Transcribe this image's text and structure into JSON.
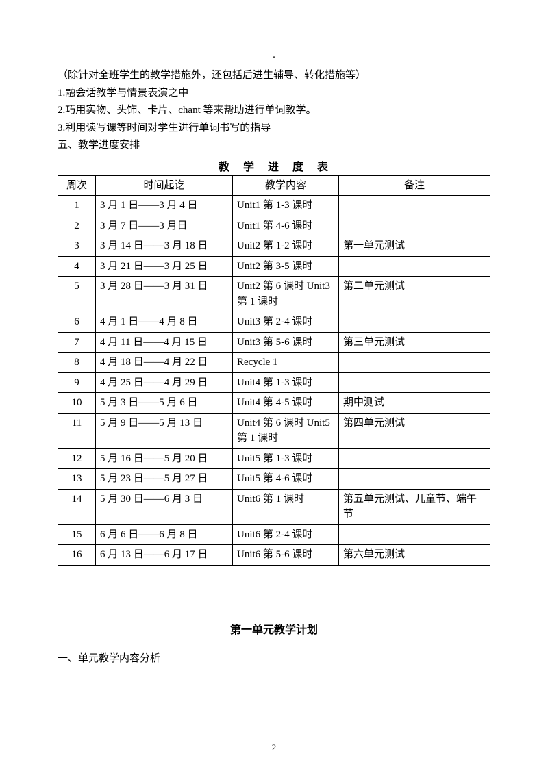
{
  "header_dot": ".",
  "intro": {
    "line1": "（除针对全班学生的教学措施外，还包括后进生辅导、转化措施等）",
    "line2": "1.融会话教学与情景表演之中",
    "line3": "2.巧用实物、头饰、卡片、chant 等来帮助进行单词教学。",
    "line4": "3.利用读写课等时间对学生进行单词书写的指导",
    "line5": "五、教学进度安排"
  },
  "table_title": "教　学　进　度　表",
  "table": {
    "headers": {
      "week": "周次",
      "time": "时间起讫",
      "content": "教学内容",
      "note": "备注"
    },
    "rows": [
      {
        "week": "1",
        "time": "3 月 1 日——3 月 4 日",
        "content": "Unit1 第 1-3 课时",
        "note": ""
      },
      {
        "week": "2",
        "time": "3 月 7 日——3 月日",
        "content": "Unit1 第 4-6 课时",
        "note": ""
      },
      {
        "week": "3",
        "time": "3 月 14 日——3 月 18 日",
        "content": "Unit2 第 1-2 课时",
        "note": "第一单元测试"
      },
      {
        "week": "4",
        "time": "3 月 21 日——3 月 25 日",
        "content": "Unit2 第 3-5 课时",
        "note": ""
      },
      {
        "week": "5",
        "time": "3 月 28 日——3 月 31 日",
        "content": "Unit2 第 6 课时 Unit3 第 1 课时",
        "note": "第二单元测试"
      },
      {
        "week": "6",
        "time": "4 月 1 日——4 月 8 日",
        "content": "Unit3 第 2-4 课时",
        "note": ""
      },
      {
        "week": "7",
        "time": "4 月 11 日——4 月 15 日",
        "content": "Unit3 第 5-6 课时",
        "note": "第三单元测试"
      },
      {
        "week": "8",
        "time": "4 月 18 日——4 月 22 日",
        "content": "Recycle 1",
        "note": ""
      },
      {
        "week": "9",
        "time": "4 月 25 日——4 月 29 日",
        "content": "Unit4 第 1-3 课时",
        "note": ""
      },
      {
        "week": "10",
        "time": "5 月 3 日——5 月 6 日",
        "content": "Unit4 第 4-5 课时",
        "note": "期中测试"
      },
      {
        "week": "11",
        "time": "5 月 9 日——5 月 13 日",
        "content": "Unit4 第 6 课时 Unit5 第 1 课时",
        "note": "第四单元测试"
      },
      {
        "week": "12",
        "time": "5 月 16 日——5 月 20 日",
        "content": "Unit5 第 1-3 课时",
        "note": ""
      },
      {
        "week": "13",
        "time": "5 月 23 日——5 月 27 日",
        "content": "Unit5 第 4-6 课时",
        "note": ""
      },
      {
        "week": "14",
        "time": "5 月 30 日——6 月 3 日",
        "content": "Unit6 第 1 课时",
        "note": "第五单元测试、儿童节、端午节"
      },
      {
        "week": "15",
        "time": "6 月 6 日——6 月 8 日",
        "content": "Unit6 第 2-4 课时",
        "note": ""
      },
      {
        "week": "16",
        "time": "6 月 13 日——6 月 17 日",
        "content": "Unit6 第 5-6 课时",
        "note": "第六单元测试"
      }
    ]
  },
  "section_title": "第一单元教学计划",
  "sub_heading": "一、单元教学内容分析",
  "page_number": "2",
  "style": {
    "font_size_body": 15,
    "font_size_table_title": 16,
    "font_size_section": 16,
    "text_color": "#000000",
    "border_color": "#000000",
    "background": "#ffffff"
  }
}
